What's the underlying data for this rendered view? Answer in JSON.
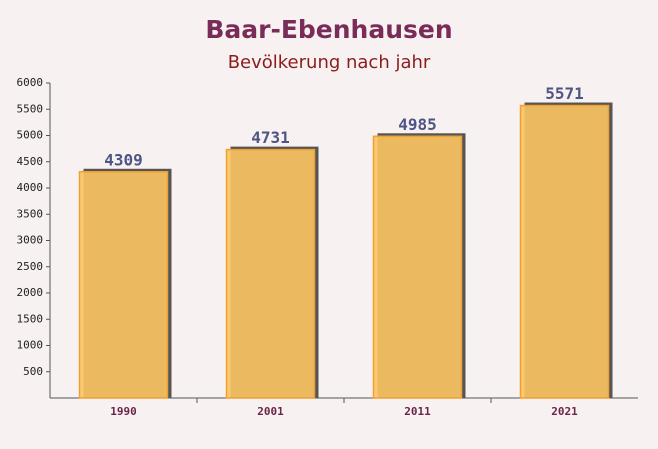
{
  "chart_data": {
    "type": "bar",
    "title": "Baar-Ebenhausen",
    "subtitle": "Bevölkerung nach jahr",
    "categories": [
      "1990",
      "2001",
      "2011",
      "2021"
    ],
    "values": [
      4309,
      4731,
      4985,
      5571
    ],
    "color": "#fbc462",
    "ylim": [
      0,
      6000
    ],
    "yticks": [
      500,
      1000,
      1500,
      2000,
      2500,
      3000,
      3500,
      4000,
      4500,
      5000,
      5500,
      6000
    ],
    "grid": false
  }
}
